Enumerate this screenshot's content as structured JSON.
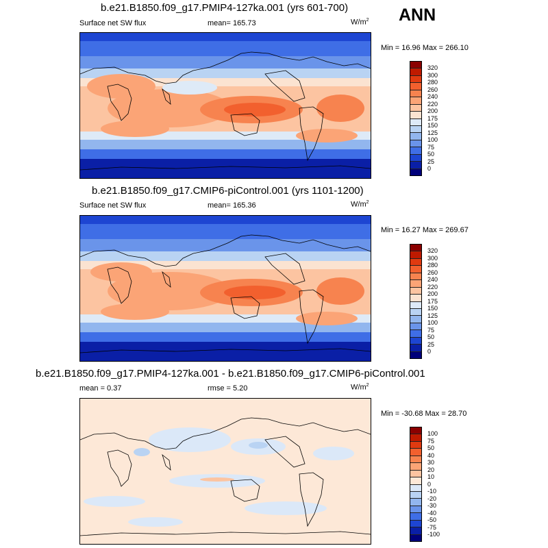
{
  "season": "ANN",
  "panels": [
    {
      "title": "b.e21.B1850.f09_g17.PMIP4-127ka.001 (yrs 601-700)",
      "variable": "Surface net SW flux",
      "stat": "mean= 165.73",
      "units": "W/m",
      "units_sup": "2",
      "minmax": "Min =  16.96 Max = 266.10",
      "colorbar": {
        "levels": [
          "320",
          "300",
          "280",
          "260",
          "240",
          "220",
          "200",
          "175",
          "150",
          "125",
          "100",
          "75",
          "50",
          "25",
          "0"
        ],
        "colors": [
          "#8b0000",
          "#bf1a00",
          "#e03a10",
          "#f2602e",
          "#f7834f",
          "#fba476",
          "#fcc4a1",
          "#fbe3d1",
          "#deeaf7",
          "#b9d3f3",
          "#92b6ee",
          "#6a94ea",
          "#3f6ee6",
          "#1d45d2",
          "#0a1fa6",
          "#00007a"
        ]
      }
    },
    {
      "title": "b.e21.B1850.f09_g17.CMIP6-piControl.001 (yrs 1101-1200)",
      "variable": "Surface net SW flux",
      "stat": "mean= 165.36",
      "units": "W/m",
      "units_sup": "2",
      "minmax": "Min =  16.27 Max = 269.67",
      "colorbar": {
        "levels": [
          "320",
          "300",
          "280",
          "260",
          "240",
          "220",
          "200",
          "175",
          "150",
          "125",
          "100",
          "75",
          "50",
          "25",
          "0"
        ],
        "colors": [
          "#8b0000",
          "#bf1a00",
          "#e03a10",
          "#f2602e",
          "#f7834f",
          "#fba476",
          "#fcc4a1",
          "#fbe3d1",
          "#deeaf7",
          "#b9d3f3",
          "#92b6ee",
          "#6a94ea",
          "#3f6ee6",
          "#1d45d2",
          "#0a1fa6",
          "#00007a"
        ]
      }
    },
    {
      "title": "b.e21.B1850.f09_g17.PMIP4-127ka.001 - b.e21.B1850.f09_g17.CMIP6-piControl.001",
      "mean": "mean =   0.37",
      "stat": "rmse =   5.20",
      "units": "W/m",
      "units_sup": "2",
      "minmax": "Min = -30.68 Max =  28.70",
      "colorbar": {
        "levels": [
          "100",
          "75",
          "50",
          "40",
          "30",
          "20",
          "10",
          "0",
          "-10",
          "-20",
          "-30",
          "-40",
          "-50",
          "-75",
          "-100"
        ],
        "colors": [
          "#8b0000",
          "#bf1a00",
          "#e03a10",
          "#f2602e",
          "#f7834f",
          "#fba476",
          "#fcc4a1",
          "#fde8d7",
          "#dbe8f8",
          "#b9d3f3",
          "#92b6ee",
          "#6a94ea",
          "#3f6ee6",
          "#1d45d2",
          "#0a1fa6",
          "#00007a"
        ]
      }
    }
  ]
}
